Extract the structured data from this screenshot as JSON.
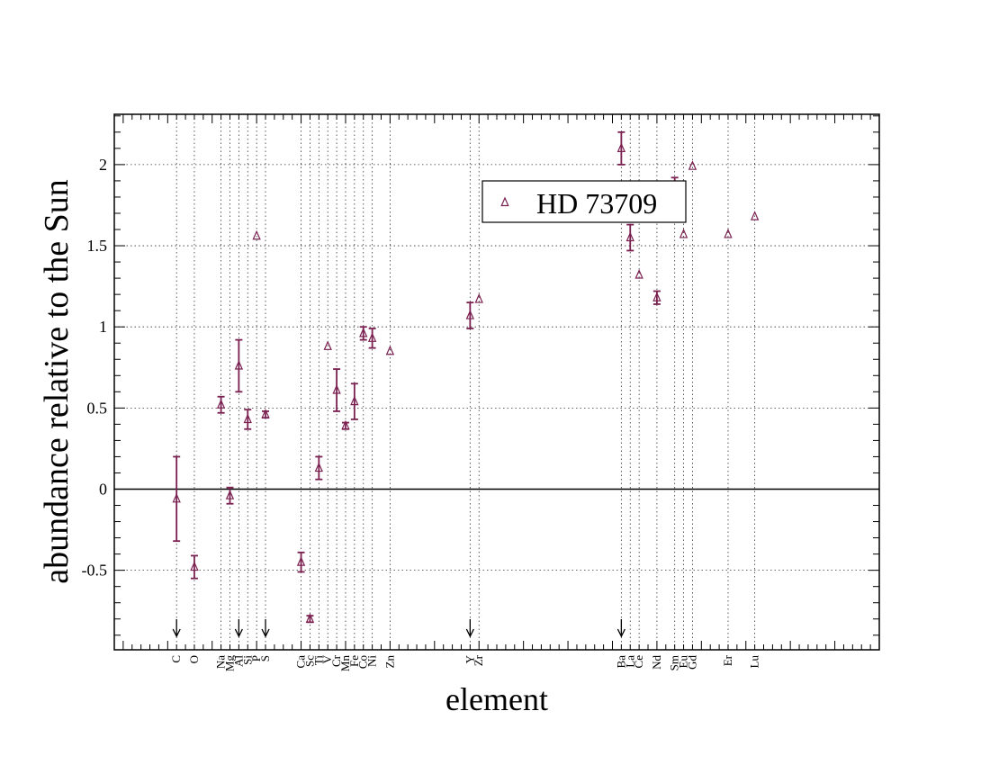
{
  "chart_data": {
    "type": "scatter",
    "title": "",
    "xlabel": "element",
    "ylabel": "abundance relative to the Sun",
    "ylim": [
      -0.99,
      2.31
    ],
    "xlim": [
      -1,
      85
    ],
    "y_ticks": [
      -0.5,
      0,
      0.5,
      1,
      1.5,
      2
    ],
    "y_tick_labels": [
      "-0.5",
      "0",
      "0.5",
      "1",
      "1.5",
      "2"
    ],
    "zero_line": true,
    "grid": "dotted vertical lines at element positions; dotted horizontal lines at major y ticks",
    "legend": {
      "position": "top-right",
      "entries": [
        "HD 73709"
      ]
    },
    "marker": "triangle-open",
    "color": "#7a2050",
    "elements": [
      {
        "label": "C",
        "x": 6
      },
      {
        "label": "O",
        "x": 8
      },
      {
        "label": "Na",
        "x": 11
      },
      {
        "label": "Mg",
        "x": 12
      },
      {
        "label": "Al",
        "x": 13
      },
      {
        "label": "Si",
        "x": 14
      },
      {
        "label": "P",
        "x": 15
      },
      {
        "label": "S",
        "x": 16
      },
      {
        "label": "Ca",
        "x": 20
      },
      {
        "label": "Sc",
        "x": 21
      },
      {
        "label": "Ti",
        "x": 22
      },
      {
        "label": "V",
        "x": 23
      },
      {
        "label": "Cr",
        "x": 24
      },
      {
        "label": "Mn",
        "x": 25
      },
      {
        "label": "Fe",
        "x": 26
      },
      {
        "label": "Co",
        "x": 27
      },
      {
        "label": "Ni",
        "x": 28
      },
      {
        "label": "Zn",
        "x": 30
      },
      {
        "label": "Y",
        "x": 39
      },
      {
        "label": "Zr",
        "x": 40
      },
      {
        "label": "Ba",
        "x": 56
      },
      {
        "label": "La",
        "x": 57
      },
      {
        "label": "Ce",
        "x": 58
      },
      {
        "label": "Nd",
        "x": 60
      },
      {
        "label": "Sm",
        "x": 62
      },
      {
        "label": "Eu",
        "x": 63
      },
      {
        "label": "Gd",
        "x": 64
      },
      {
        "label": "Er",
        "x": 68
      },
      {
        "label": "Lu",
        "x": 71
      }
    ],
    "series": [
      {
        "name": "HD 73709",
        "points": [
          {
            "x": 6,
            "y": -0.06,
            "err": 0.26
          },
          {
            "x": 8,
            "y": -0.48,
            "err": 0.07
          },
          {
            "x": 11,
            "y": 0.52,
            "err": 0.05
          },
          {
            "x": 12,
            "y": -0.04,
            "err": 0.05
          },
          {
            "x": 13,
            "y": 0.76,
            "err": 0.16
          },
          {
            "x": 14,
            "y": 0.43,
            "err": 0.06
          },
          {
            "x": 15,
            "y": 1.56,
            "err": 0
          },
          {
            "x": 16,
            "y": 0.46,
            "err": 0.02
          },
          {
            "x": 20,
            "y": -0.45,
            "err": 0.06
          },
          {
            "x": 21,
            "y": -0.8,
            "err": 0.02
          },
          {
            "x": 22,
            "y": 0.13,
            "err": 0.07
          },
          {
            "x": 23,
            "y": 0.88,
            "err": 0
          },
          {
            "x": 24,
            "y": 0.61,
            "err": 0.13
          },
          {
            "x": 25,
            "y": 0.39,
            "err": 0.02
          },
          {
            "x": 26,
            "y": 0.54,
            "err": 0.11
          },
          {
            "x": 27,
            "y": 0.96,
            "err": 0.04
          },
          {
            "x": 28,
            "y": 0.93,
            "err": 0.06
          },
          {
            "x": 30,
            "y": 0.85,
            "err": 0
          },
          {
            "x": 39,
            "y": 1.07,
            "err": 0.08
          },
          {
            "x": 40,
            "y": 1.17,
            "err": 0
          },
          {
            "x": 56,
            "y": 2.1,
            "err": 0.1
          },
          {
            "x": 57,
            "y": 1.55,
            "err": 0.08
          },
          {
            "x": 58,
            "y": 1.32,
            "err": 0
          },
          {
            "x": 60,
            "y": 1.18,
            "err": 0.04
          },
          {
            "x": 62,
            "y": 1.85,
            "err": 0.07
          },
          {
            "x": 63,
            "y": 1.57,
            "err": 0
          },
          {
            "x": 64,
            "y": 1.99,
            "err": 0
          },
          {
            "x": 68,
            "y": 1.57,
            "err": 0
          },
          {
            "x": 71,
            "y": 1.68,
            "err": 0
          }
        ]
      }
    ],
    "upper_limit_arrows": [
      6,
      13,
      16,
      39,
      56
    ]
  }
}
